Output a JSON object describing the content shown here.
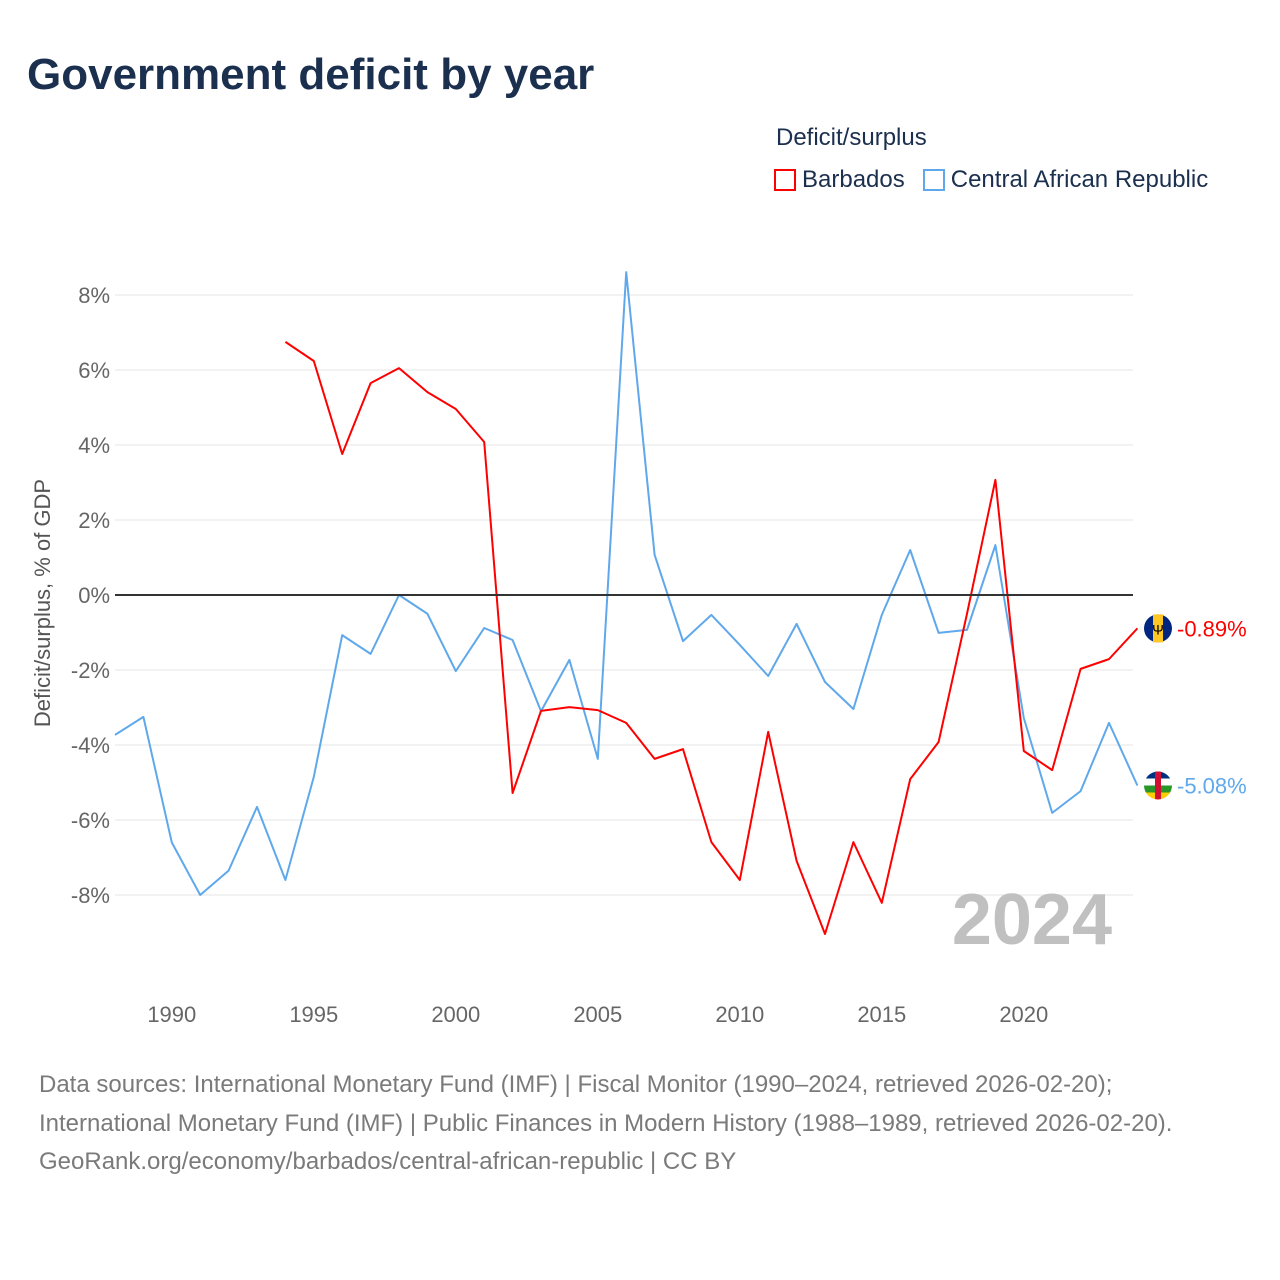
{
  "title": "Government deficit by year",
  "legend": {
    "title": "Deficit/surplus",
    "items": [
      {
        "label": "Barbados",
        "color": "#ff0000"
      },
      {
        "label": "Central African Republic",
        "color": "#5fa8eb"
      }
    ]
  },
  "chart_data": {
    "type": "line",
    "title": "Government deficit by year",
    "xlabel": "",
    "ylabel": "Deficit/surplus, % of GDP",
    "xlim": [
      1988,
      2024
    ],
    "ylim": [
      -10,
      8.6
    ],
    "xticks": [
      1990,
      1995,
      2000,
      2005,
      2010,
      2015,
      2020
    ],
    "xtick_labels": [
      "1990",
      "1995",
      "2000",
      "2005",
      "2010",
      "2015",
      "2020"
    ],
    "yticks": [
      8,
      6,
      4,
      2,
      0,
      -2,
      -4,
      -6,
      -8
    ],
    "ytick_labels": [
      "8%",
      "6%",
      "4%",
      "2%",
      "0%",
      "-2%",
      "-4%",
      "-6%",
      "-8%"
    ],
    "grid": true,
    "year_label": "2024",
    "series": [
      {
        "name": "Barbados",
        "color": "#ff0000",
        "end_label": "-0.89%",
        "x": [
          1994,
          1995,
          1996,
          1997,
          1998,
          1999,
          2000,
          2001,
          2002,
          2003,
          2004,
          2005,
          2006,
          2007,
          2008,
          2009,
          2010,
          2011,
          2012,
          2013,
          2014,
          2015,
          2016,
          2017,
          2018,
          2019,
          2020,
          2021,
          2022,
          2023,
          2024
        ],
        "values": [
          6.75,
          6.24,
          3.76,
          5.65,
          6.05,
          5.41,
          4.96,
          4.08,
          -5.28,
          -3.09,
          -2.99,
          -3.07,
          -3.41,
          -4.37,
          -4.11,
          -6.59,
          -7.6,
          -3.65,
          -7.09,
          -9.04,
          -6.59,
          -8.21,
          -4.91,
          -3.92,
          -0.5,
          3.07,
          -4.16,
          -4.67,
          -1.97,
          -1.71,
          -0.89
        ]
      },
      {
        "name": "Central African Republic",
        "color": "#5fa8eb",
        "end_label": "-5.08%",
        "x": [
          1988,
          1989,
          1990,
          1991,
          1992,
          1993,
          1994,
          1995,
          1996,
          1997,
          1998,
          1999,
          2000,
          2001,
          2002,
          2003,
          2004,
          2005,
          2006,
          2007,
          2008,
          2009,
          2010,
          2011,
          2012,
          2013,
          2014,
          2015,
          2016,
          2017,
          2018,
          2019,
          2020,
          2021,
          2022,
          2023,
          2024
        ],
        "values": [
          -3.73,
          -3.25,
          -6.6,
          -8.0,
          -7.35,
          -5.65,
          -7.6,
          -4.85,
          -1.07,
          -1.57,
          0,
          -0.5,
          -2.03,
          -0.88,
          -1.2,
          -3.1,
          -1.73,
          -4.37,
          8.61,
          1.07,
          -1.23,
          -0.53,
          -1.33,
          -2.16,
          -0.77,
          -2.32,
          -3.04,
          -0.53,
          1.2,
          -1.01,
          -0.93,
          1.33,
          -3.28,
          -5.81,
          -5.23,
          -3.41,
          -5.08
        ]
      }
    ]
  },
  "footer": {
    "sources": "Data sources: International Monetary Fund (IMF) | Fiscal Monitor (1990–2024, retrieved 2026-02-20); International Monetary Fund (IMF) | Public Finances in Modern History (1988–1989, retrieved 2026-02-20).",
    "link": "GeoRank.org/economy/barbados/central-african-republic | CC BY"
  }
}
